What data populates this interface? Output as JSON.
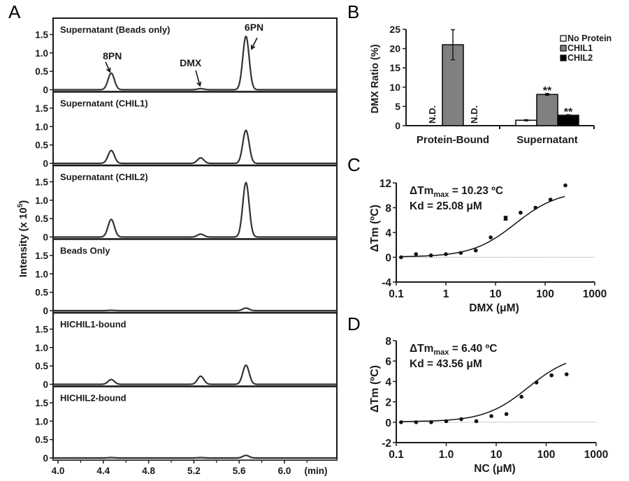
{
  "panels": {
    "A": "A",
    "B": "B",
    "C": "C",
    "D": "D"
  },
  "chart_data": [
    {
      "id": "A",
      "type": "line",
      "title": "",
      "xlabel": "(min)",
      "ylabel": "Intensity (x 10^5)",
      "ylabel_parts": {
        "main": "Intensity (x 10",
        "sup": "5",
        "end": ")"
      },
      "xlim": [
        3.96,
        6.5
      ],
      "ylim": [
        0,
        1.85
      ],
      "xticks": [
        4.0,
        4.4,
        4.8,
        5.2,
        5.6,
        6.0
      ],
      "xtick_labels": [
        "4.0",
        "4.4",
        "4.8",
        "5.2",
        "5.6",
        "6.0"
      ],
      "xminor": [
        4.2,
        4.6,
        5.0,
        5.4,
        5.8,
        6.2
      ],
      "yticks": [
        0,
        0.5,
        1.0,
        1.5
      ],
      "ytick_labels": [
        "0",
        "0.5",
        "1.0",
        "1.5"
      ],
      "peak_positions": {
        "8PN": 4.47,
        "DMX": 5.26,
        "6PN": 5.66
      },
      "peak_width_sigma": 0.028,
      "annotations": [
        {
          "text": "8PN",
          "target": "8PN",
          "panel": 0
        },
        {
          "text": "DMX",
          "target": "DMX",
          "panel": 0
        },
        {
          "text": "6PN",
          "target": "6PN",
          "panel": 0
        }
      ],
      "series": [
        {
          "name": "Supernatant (Beads only)",
          "peaks": {
            "8PN": 0.45,
            "DMX": 0.03,
            "6PN": 1.45
          }
        },
        {
          "name": "Supernatant (CHIL1)",
          "peaks": {
            "8PN": 0.35,
            "DMX": 0.15,
            "6PN": 0.9
          }
        },
        {
          "name": "Supernatant (CHIL2)",
          "peaks": {
            "8PN": 0.48,
            "DMX": 0.08,
            "6PN": 1.48
          }
        },
        {
          "name": "Beads Only",
          "peaks": {
            "8PN": 0.01,
            "DMX": 0.0,
            "6PN": 0.07
          }
        },
        {
          "name": "HICHIL1-bound",
          "peaks": {
            "8PN": 0.13,
            "DMX": 0.22,
            "6PN": 0.52
          }
        },
        {
          "name": "HICHIL2-bound",
          "peaks": {
            "8PN": 0.01,
            "DMX": 0.01,
            "6PN": 0.07
          }
        }
      ]
    },
    {
      "id": "B",
      "type": "bar",
      "title": "",
      "xlabel": "",
      "ylabel": "DMX Ratio (%)",
      "ylim": [
        0,
        25
      ],
      "yticks": [
        0,
        5,
        10,
        15,
        20,
        25
      ],
      "categories": [
        "Protein-Bound",
        "Supernatant"
      ],
      "legend_position": "top-right",
      "series": [
        {
          "name": "No Protein",
          "color": "#ffffff",
          "values": [
            null,
            1.4
          ],
          "errors": [
            null,
            0.15
          ],
          "labels": [
            "N.D.",
            ""
          ],
          "significance": [
            "",
            ""
          ]
        },
        {
          "name": "CHIL1",
          "color": "#808080",
          "values": [
            21.0,
            8.1
          ],
          "errors": [
            3.9,
            0.25
          ],
          "labels": [
            "",
            ""
          ],
          "significance": [
            "",
            "**"
          ]
        },
        {
          "name": "CHIL2",
          "color": "#000000",
          "values": [
            null,
            2.7
          ],
          "errors": [
            null,
            0.15
          ],
          "labels": [
            "N.D.",
            ""
          ],
          "significance": [
            "",
            "**"
          ]
        }
      ]
    },
    {
      "id": "C",
      "type": "scatter",
      "xscale": "log",
      "xlabel": "DMX (μM)",
      "ylabel": "ΔTm (ºC)",
      "xlim": [
        0.1,
        1000
      ],
      "ylim": [
        -4,
        12
      ],
      "xticks": [
        0.1,
        1,
        10,
        100,
        1000
      ],
      "xtick_labels": [
        "0.1",
        "1",
        "10",
        "100",
        "1000"
      ],
      "yticks": [
        -4,
        0,
        4,
        8,
        12
      ],
      "ytick_labels": [
        "-4",
        "0",
        "4",
        "8",
        "12"
      ],
      "annotation_line1": {
        "pre": "ΔTm",
        "sub": "max",
        "post": " = 10.23 ºC"
      },
      "annotation_line2": "Kd = 25.08 μM",
      "fit": {
        "tm_max": 10.23,
        "kd": 25.08
      },
      "x": [
        0.125,
        0.25,
        0.5,
        1,
        2,
        4,
        8,
        16,
        32,
        64,
        128,
        256
      ],
      "y": [
        0.0,
        0.5,
        0.3,
        0.5,
        0.7,
        1.1,
        3.2,
        6.3,
        7.2,
        8.0,
        9.3,
        11.6
      ],
      "errors": [
        0,
        0,
        0,
        0,
        0,
        0,
        0,
        0.3,
        0,
        0,
        0,
        0
      ]
    },
    {
      "id": "D",
      "type": "scatter",
      "xscale": "log",
      "xlabel": "NC (μM)",
      "ylabel": "ΔTm (ºC)",
      "xlim": [
        0.1,
        1000
      ],
      "ylim": [
        -2,
        8
      ],
      "xticks": [
        0.1,
        1,
        10,
        100,
        1000
      ],
      "xtick_labels": [
        "0.1",
        "1.0",
        "10",
        "100",
        "1000"
      ],
      "yticks": [
        -2,
        0,
        2,
        4,
        6,
        8
      ],
      "ytick_labels": [
        "-2",
        "0",
        "2",
        "4",
        "6",
        "8"
      ],
      "annotation_line1": {
        "pre": "ΔTm",
        "sub": "max",
        "post": " = 6.40 ºC"
      },
      "annotation_line2": "Kd = 43.56 μM",
      "fit": {
        "tm_max": 6.4,
        "kd": 43.56
      },
      "x": [
        0.125,
        0.25,
        0.5,
        1,
        2,
        4,
        8,
        16,
        32,
        64,
        128,
        256
      ],
      "y": [
        0.0,
        0.0,
        0.0,
        0.1,
        0.3,
        0.1,
        0.6,
        0.8,
        2.5,
        3.9,
        4.6,
        4.7
      ],
      "errors": [
        0,
        0,
        0,
        0,
        0,
        0,
        0,
        0,
        0,
        0,
        0,
        0
      ]
    }
  ]
}
